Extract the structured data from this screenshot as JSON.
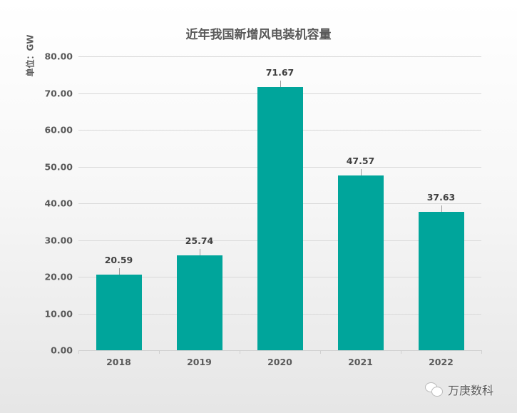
{
  "chart_data": {
    "type": "bar",
    "title": "近年我国新增风电装机容量",
    "ylabel": "单位：GW",
    "xlabel": "",
    "categories": [
      "2018",
      "2019",
      "2020",
      "2021",
      "2022"
    ],
    "values": [
      20.59,
      25.74,
      71.67,
      47.57,
      37.63
    ],
    "value_labels": [
      "20.59",
      "25.74",
      "71.67",
      "47.57",
      "37.63"
    ],
    "ylim": [
      0,
      80
    ],
    "y_ticks": [
      "0.00",
      "10.00",
      "20.00",
      "30.00",
      "40.00",
      "50.00",
      "60.00",
      "70.00",
      "80.00"
    ],
    "grid": true,
    "legend": "none",
    "bar_color": "#00a59b"
  },
  "watermark": {
    "icon": "wechat-icon",
    "text": "万庚数科"
  }
}
